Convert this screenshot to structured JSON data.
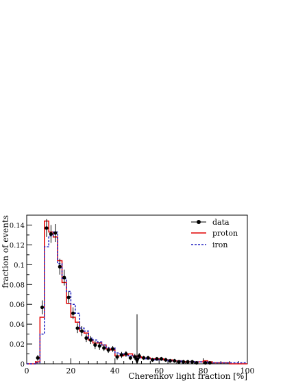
{
  "chart_data": {
    "type": "histogram",
    "title": "",
    "xlabel": "Cherenkov light fraction [%]",
    "ylabel": "fraction of events",
    "xlim": [
      0,
      100
    ],
    "ylim": [
      0,
      0.15
    ],
    "x_ticks": [
      0,
      20,
      40,
      60,
      80,
      100
    ],
    "y_ticks": [
      0,
      0.02,
      0.04,
      0.06,
      0.08,
      0.1,
      0.12,
      0.14
    ],
    "x_tick_labels": [
      "0",
      "20",
      "40",
      "60",
      "80",
      "100"
    ],
    "y_tick_labels": [
      "0",
      "0.02",
      "0.04",
      "0.06",
      "0.08",
      "0.1",
      "0.12",
      "0.14"
    ],
    "grid": false,
    "legend_position": "top-right",
    "bin_edges": [
      0,
      2,
      4,
      6,
      8,
      10,
      12,
      14,
      16,
      18,
      20,
      22,
      24,
      26,
      28,
      30,
      32,
      34,
      36,
      38,
      40,
      42,
      44,
      46,
      48,
      50,
      52,
      54,
      56,
      58,
      60,
      62,
      64,
      66,
      68,
      70,
      72,
      74,
      76,
      78,
      80,
      82,
      84,
      86,
      88,
      90,
      92,
      94,
      96,
      98,
      100
    ],
    "series": [
      {
        "name": "data",
        "kind": "points_with_errors",
        "color": "#000000",
        "points": [
          {
            "x": 5,
            "y": 0.006,
            "err": 0.003
          },
          {
            "x": 7,
            "y": 0.057,
            "err": 0.007
          },
          {
            "x": 9,
            "y": 0.137,
            "err": 0.009
          },
          {
            "x": 11,
            "y": 0.131,
            "err": 0.009
          },
          {
            "x": 13,
            "y": 0.132,
            "err": 0.009
          },
          {
            "x": 15,
            "y": 0.098,
            "err": 0.008
          },
          {
            "x": 17,
            "y": 0.087,
            "err": 0.008
          },
          {
            "x": 19,
            "y": 0.067,
            "err": 0.006
          },
          {
            "x": 21,
            "y": 0.051,
            "err": 0.006
          },
          {
            "x": 23,
            "y": 0.036,
            "err": 0.005
          },
          {
            "x": 25,
            "y": 0.033,
            "err": 0.005
          },
          {
            "x": 27,
            "y": 0.026,
            "err": 0.004
          },
          {
            "x": 29,
            "y": 0.024,
            "err": 0.004
          },
          {
            "x": 31,
            "y": 0.019,
            "err": 0.004
          },
          {
            "x": 33,
            "y": 0.018,
            "err": 0.004
          },
          {
            "x": 35,
            "y": 0.016,
            "err": 0.003
          },
          {
            "x": 37,
            "y": 0.014,
            "err": 0.003
          },
          {
            "x": 39,
            "y": 0.015,
            "err": 0.003
          },
          {
            "x": 41,
            "y": 0.007,
            "err": 0.003
          },
          {
            "x": 43,
            "y": 0.009,
            "err": 0.003
          },
          {
            "x": 45,
            "y": 0.01,
            "err": 0.003
          },
          {
            "x": 47,
            "y": 0.006,
            "err": 0.002
          },
          {
            "x": 49,
            "y": 0.007,
            "err": 0.003
          },
          {
            "x": 51,
            "y": 0.008,
            "err": 0.003
          },
          {
            "x": 53,
            "y": 0.006,
            "err": 0.002
          },
          {
            "x": 55,
            "y": 0.006,
            "err": 0.002
          },
          {
            "x": 57,
            "y": 0.004,
            "err": 0.002
          },
          {
            "x": 59,
            "y": 0.005,
            "err": 0.002
          },
          {
            "x": 61,
            "y": 0.005,
            "err": 0.002
          },
          {
            "x": 63,
            "y": 0.004,
            "err": 0.002
          },
          {
            "x": 65,
            "y": 0.003,
            "err": 0.002
          },
          {
            "x": 67,
            "y": 0.003,
            "err": 0.002
          },
          {
            "x": 69,
            "y": 0.002,
            "err": 0.002
          },
          {
            "x": 71,
            "y": 0.002,
            "err": 0.002
          },
          {
            "x": 73,
            "y": 0.002,
            "err": 0.002
          },
          {
            "x": 75,
            "y": 0.002,
            "err": 0.002
          },
          {
            "x": 77,
            "y": 0.001,
            "err": 0.001
          },
          {
            "x": 81,
            "y": 0.001,
            "err": 0.001
          },
          {
            "x": 83,
            "y": 0.001,
            "err": 0.001
          }
        ]
      },
      {
        "name": "proton",
        "kind": "step",
        "color": "#e00000",
        "dash": "solid",
        "values": [
          0,
          0,
          0.002,
          0.047,
          0.144,
          0.133,
          0.128,
          0.104,
          0.082,
          0.061,
          0.047,
          0.042,
          0.033,
          0.031,
          0.024,
          0.021,
          0.021,
          0.019,
          0.015,
          0.014,
          0.008,
          0.008,
          0.009,
          0.01,
          0.008,
          0.007,
          0.006,
          0.006,
          0.005,
          0.005,
          0.005,
          0.004,
          0.004,
          0.003,
          0.003,
          0.002,
          0.002,
          0.002,
          0.002,
          0.002,
          0.003,
          0.002,
          0.001,
          0.001,
          0.001,
          0.001,
          0,
          0,
          0,
          0
        ]
      },
      {
        "name": "iron",
        "kind": "step",
        "color": "#2020c0",
        "dash": "dashed",
        "values": [
          0,
          0,
          0.001,
          0.03,
          0.118,
          0.129,
          0.133,
          0.101,
          0.086,
          0.073,
          0.06,
          0.051,
          0.036,
          0.033,
          0.026,
          0.024,
          0.022,
          0.019,
          0.016,
          0.016,
          0.011,
          0.01,
          0.009,
          0.008,
          0.007,
          0.006,
          0.006,
          0.005,
          0.005,
          0.004,
          0.004,
          0.004,
          0.003,
          0.003,
          0.003,
          0.002,
          0.002,
          0.002,
          0.002,
          0.002,
          0.002,
          0.001,
          0.001,
          0.001,
          0.001,
          0.001,
          0.001,
          0.001,
          0.001,
          0.001
        ]
      }
    ],
    "annotations": [
      {
        "kind": "arrow",
        "direction": "down",
        "x": 50,
        "y_from": 0.05,
        "y_to": 0.0,
        "color": "#000000"
      }
    ]
  }
}
